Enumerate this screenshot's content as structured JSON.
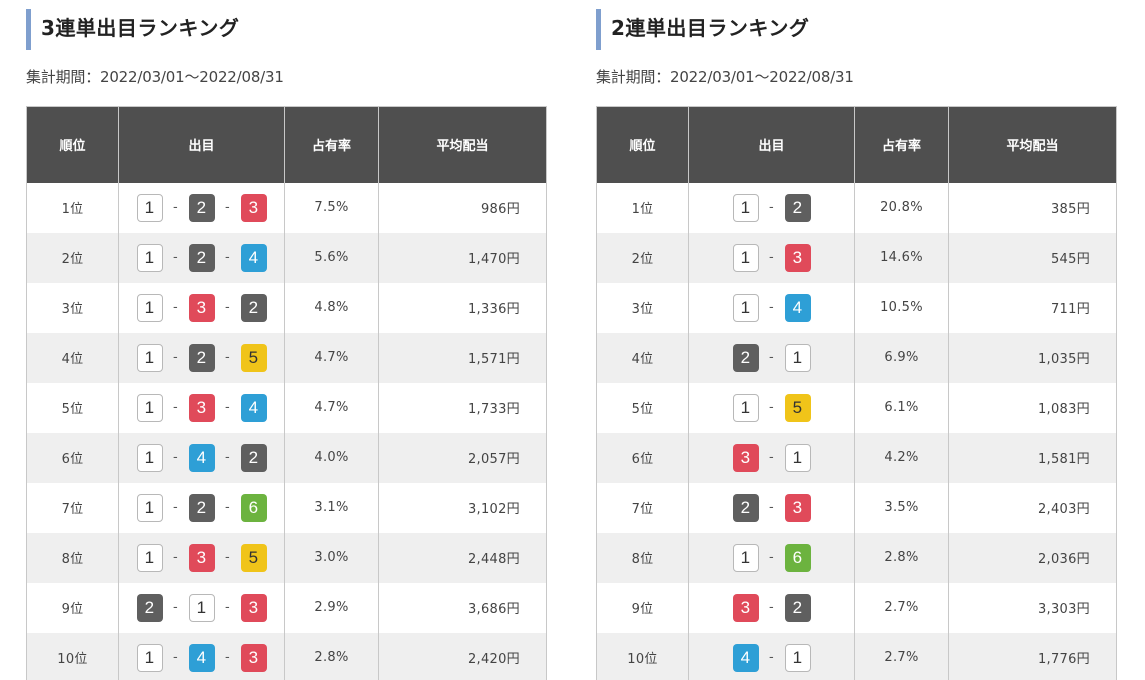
{
  "colors": {
    "accent_bar": "#7f9fce",
    "header_bg": "#4f4f4f",
    "row_alt_bg": "#efefef",
    "boat_1": "#ffffff",
    "boat_2": "#5f5f5f",
    "boat_3": "#e04a5a",
    "boat_4": "#2e9fd6",
    "boat_5": "#f0c419",
    "boat_6": "#6cb33f"
  },
  "trifecta": {
    "title": "3連単出目ランキング",
    "period": "集計期間：2022/03/01〜2022/08/31",
    "columns": [
      "順位",
      "出目",
      "占有率",
      "平均配当"
    ],
    "rows": [
      {
        "rank": "1位",
        "combo": [
          "1",
          "2",
          "3"
        ],
        "share": "7.5%",
        "payout": "986円"
      },
      {
        "rank": "2位",
        "combo": [
          "1",
          "2",
          "4"
        ],
        "share": "5.6%",
        "payout": "1,470円"
      },
      {
        "rank": "3位",
        "combo": [
          "1",
          "3",
          "2"
        ],
        "share": "4.8%",
        "payout": "1,336円"
      },
      {
        "rank": "4位",
        "combo": [
          "1",
          "2",
          "5"
        ],
        "share": "4.7%",
        "payout": "1,571円"
      },
      {
        "rank": "5位",
        "combo": [
          "1",
          "3",
          "4"
        ],
        "share": "4.7%",
        "payout": "1,733円"
      },
      {
        "rank": "6位",
        "combo": [
          "1",
          "4",
          "2"
        ],
        "share": "4.0%",
        "payout": "2,057円"
      },
      {
        "rank": "7位",
        "combo": [
          "1",
          "2",
          "6"
        ],
        "share": "3.1%",
        "payout": "3,102円"
      },
      {
        "rank": "8位",
        "combo": [
          "1",
          "3",
          "5"
        ],
        "share": "3.0%",
        "payout": "2,448円"
      },
      {
        "rank": "9位",
        "combo": [
          "2",
          "1",
          "3"
        ],
        "share": "2.9%",
        "payout": "3,686円"
      },
      {
        "rank": "10位",
        "combo": [
          "1",
          "4",
          "3"
        ],
        "share": "2.8%",
        "payout": "2,420円"
      }
    ]
  },
  "exacta": {
    "title": "2連単出目ランキング",
    "period": "集計期間：2022/03/01〜2022/08/31",
    "columns": [
      "順位",
      "出目",
      "占有率",
      "平均配当"
    ],
    "rows": [
      {
        "rank": "1位",
        "combo": [
          "1",
          "2"
        ],
        "share": "20.8%",
        "payout": "385円"
      },
      {
        "rank": "2位",
        "combo": [
          "1",
          "3"
        ],
        "share": "14.6%",
        "payout": "545円"
      },
      {
        "rank": "3位",
        "combo": [
          "1",
          "4"
        ],
        "share": "10.5%",
        "payout": "711円"
      },
      {
        "rank": "4位",
        "combo": [
          "2",
          "1"
        ],
        "share": "6.9%",
        "payout": "1,035円"
      },
      {
        "rank": "5位",
        "combo": [
          "1",
          "5"
        ],
        "share": "6.1%",
        "payout": "1,083円"
      },
      {
        "rank": "6位",
        "combo": [
          "3",
          "1"
        ],
        "share": "4.2%",
        "payout": "1,581円"
      },
      {
        "rank": "7位",
        "combo": [
          "2",
          "3"
        ],
        "share": "3.5%",
        "payout": "2,403円"
      },
      {
        "rank": "8位",
        "combo": [
          "1",
          "6"
        ],
        "share": "2.8%",
        "payout": "2,036円"
      },
      {
        "rank": "9位",
        "combo": [
          "3",
          "2"
        ],
        "share": "2.7%",
        "payout": "3,303円"
      },
      {
        "rank": "10位",
        "combo": [
          "4",
          "1"
        ],
        "share": "2.7%",
        "payout": "1,776円"
      }
    ]
  },
  "separator": "-"
}
